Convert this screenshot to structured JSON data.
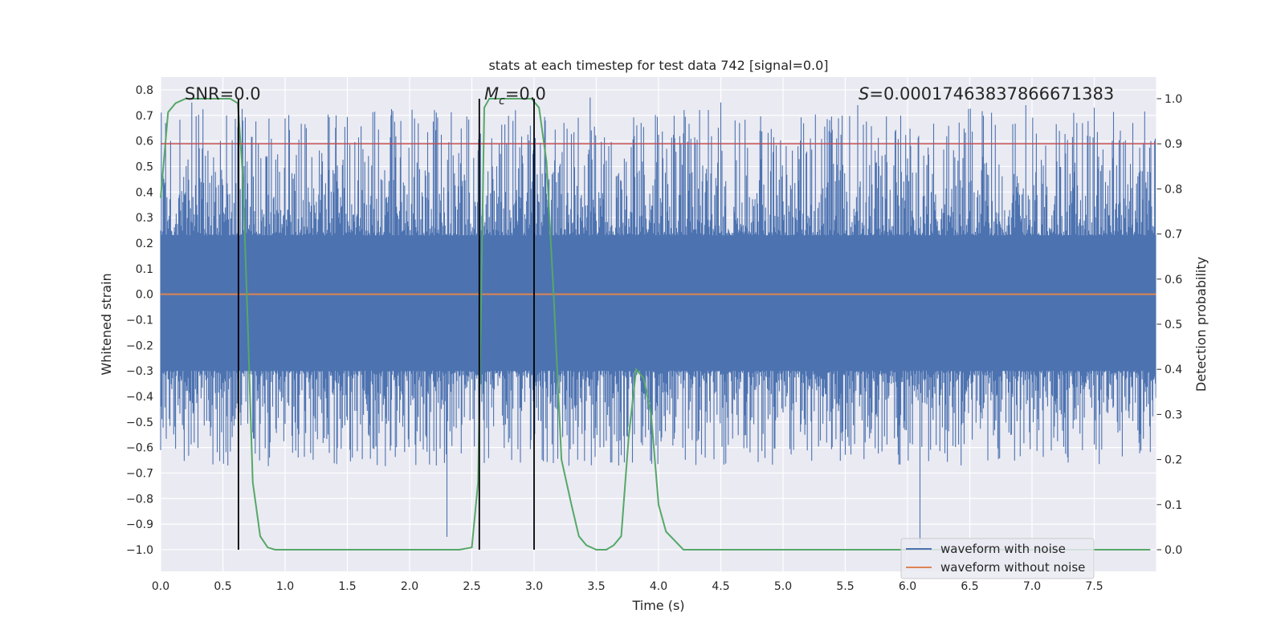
{
  "chart_data": {
    "type": "line",
    "title": "stats at each timestep for test data 742 [signal=0.0]",
    "xlabel": "Time (s)",
    "ylabel": "Whitened strain",
    "y2label": "Detection probability",
    "xlim": [
      0.0,
      8.0
    ],
    "ylim": [
      -1.085,
      0.85
    ],
    "y2lim": [
      -0.048,
      1.048
    ],
    "xticks": [
      "0.0",
      "0.5",
      "1.0",
      "1.5",
      "2.0",
      "2.5",
      "3.0",
      "3.5",
      "4.0",
      "4.5",
      "5.0",
      "5.5",
      "6.0",
      "6.5",
      "7.0",
      "7.5"
    ],
    "yticks": [
      "0.8",
      "0.7",
      "0.6",
      "0.5",
      "0.4",
      "0.3",
      "0.2",
      "0.1",
      "0.0",
      "-0.1",
      "-0.2",
      "-0.3",
      "-0.4",
      "-0.5",
      "-0.6",
      "-0.7",
      "-0.8",
      "-0.9",
      "-1.0"
    ],
    "y2ticks": [
      "1.0",
      "0.9",
      "0.8",
      "0.7",
      "0.6",
      "0.5",
      "0.4",
      "0.3",
      "0.2",
      "0.1",
      "0.0"
    ],
    "grid": true,
    "legend_position": "bottom-right",
    "annotations": {
      "snr": "SNR=0.0",
      "mc_symbol": "M",
      "mc_sub": "c",
      "mc_value": "=0.0",
      "s_symbol": "S",
      "s_value": "=0.00017463837866671383"
    },
    "threshold_line": {
      "y2": 0.9,
      "color": "#c44e52"
    },
    "vertical_lines": [
      0.625,
      2.56,
      3.0
    ],
    "series": [
      {
        "name": "waveform with noise",
        "color": "#4c72b0",
        "axis": "left",
        "noise_envelope": {
          "core_low": -0.3,
          "core_high": 0.23,
          "spike_max": 0.77,
          "spike_min": -0.98,
          "x_start": 0.0,
          "x_end": 8.0
        },
        "notable_peaks": [
          [
            0.25,
            0.75
          ],
          [
            0.63,
            0.7
          ],
          [
            1.85,
            0.7
          ],
          [
            2.3,
            -0.95
          ],
          [
            3.45,
            0.77
          ],
          [
            4.5,
            0.75
          ],
          [
            5.6,
            0.74
          ],
          [
            6.1,
            -0.98
          ],
          [
            6.95,
            0.74
          ],
          [
            7.5,
            0.73
          ]
        ]
      },
      {
        "name": "waveform without noise",
        "color": "#dd8452",
        "axis": "left",
        "x": [
          0.0,
          8.0
        ],
        "y": [
          0.0,
          0.0
        ]
      },
      {
        "name": "detection probability",
        "color": "#55a868",
        "axis": "right",
        "x": [
          0.0,
          0.06,
          0.12,
          0.2,
          0.3,
          0.4,
          0.5,
          0.56,
          0.62,
          0.66,
          0.7,
          0.74,
          0.8,
          0.86,
          0.92,
          1.0,
          1.5,
          2.0,
          2.4,
          2.5,
          2.55,
          2.6,
          2.64,
          2.7,
          2.8,
          2.9,
          2.98,
          3.04,
          3.1,
          3.16,
          3.22,
          3.3,
          3.36,
          3.42,
          3.5,
          3.58,
          3.64,
          3.7,
          3.76,
          3.82,
          3.88,
          3.94,
          4.0,
          4.06,
          4.2,
          5.0,
          6.0,
          7.0,
          7.95
        ],
        "y": [
          0.78,
          0.97,
          0.99,
          1.0,
          1.0,
          1.0,
          1.0,
          1.0,
          0.99,
          0.83,
          0.5,
          0.15,
          0.03,
          0.005,
          0.0,
          0.0,
          0.0,
          0.0,
          0.0,
          0.005,
          0.15,
          0.98,
          1.0,
          1.0,
          1.0,
          1.0,
          1.0,
          0.98,
          0.86,
          0.55,
          0.2,
          0.1,
          0.03,
          0.01,
          0.0,
          0.0,
          0.01,
          0.03,
          0.25,
          0.4,
          0.38,
          0.3,
          0.1,
          0.04,
          0.0,
          0.0,
          0.0,
          0.0,
          0.0
        ]
      }
    ]
  }
}
